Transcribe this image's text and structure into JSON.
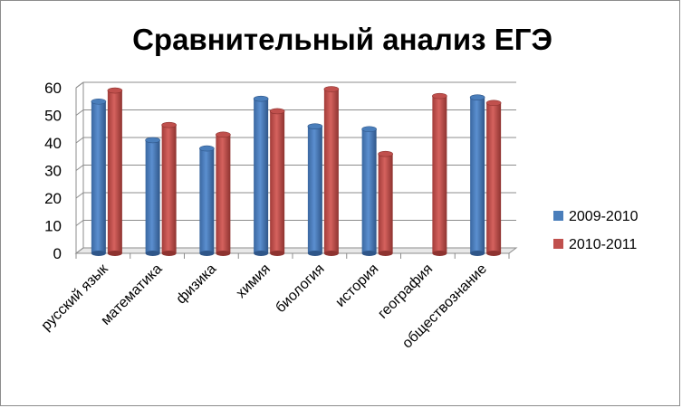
{
  "chart_data": {
    "type": "bar",
    "title": "Сравнительный анализ ЕГЭ",
    "xlabel": "",
    "ylabel": "",
    "ylim": [
      0,
      60
    ],
    "yticks": [
      "0",
      "10",
      "20",
      "30",
      "40",
      "50",
      "60"
    ],
    "categories": [
      "русский язык",
      "математика",
      "физика",
      "химия",
      "биология",
      "история",
      "география",
      "обществознание"
    ],
    "series": [
      {
        "name": "2009-2010",
        "color": "#4a7ebb",
        "values": [
          55,
          41,
          38,
          56,
          46,
          45,
          null,
          56.5
        ]
      },
      {
        "name": "2010-2011",
        "color": "#c0504d",
        "values": [
          59,
          46.5,
          43,
          51.5,
          59.5,
          36,
          57,
          54.5
        ]
      }
    ],
    "grid": true,
    "legend_position": "right"
  }
}
